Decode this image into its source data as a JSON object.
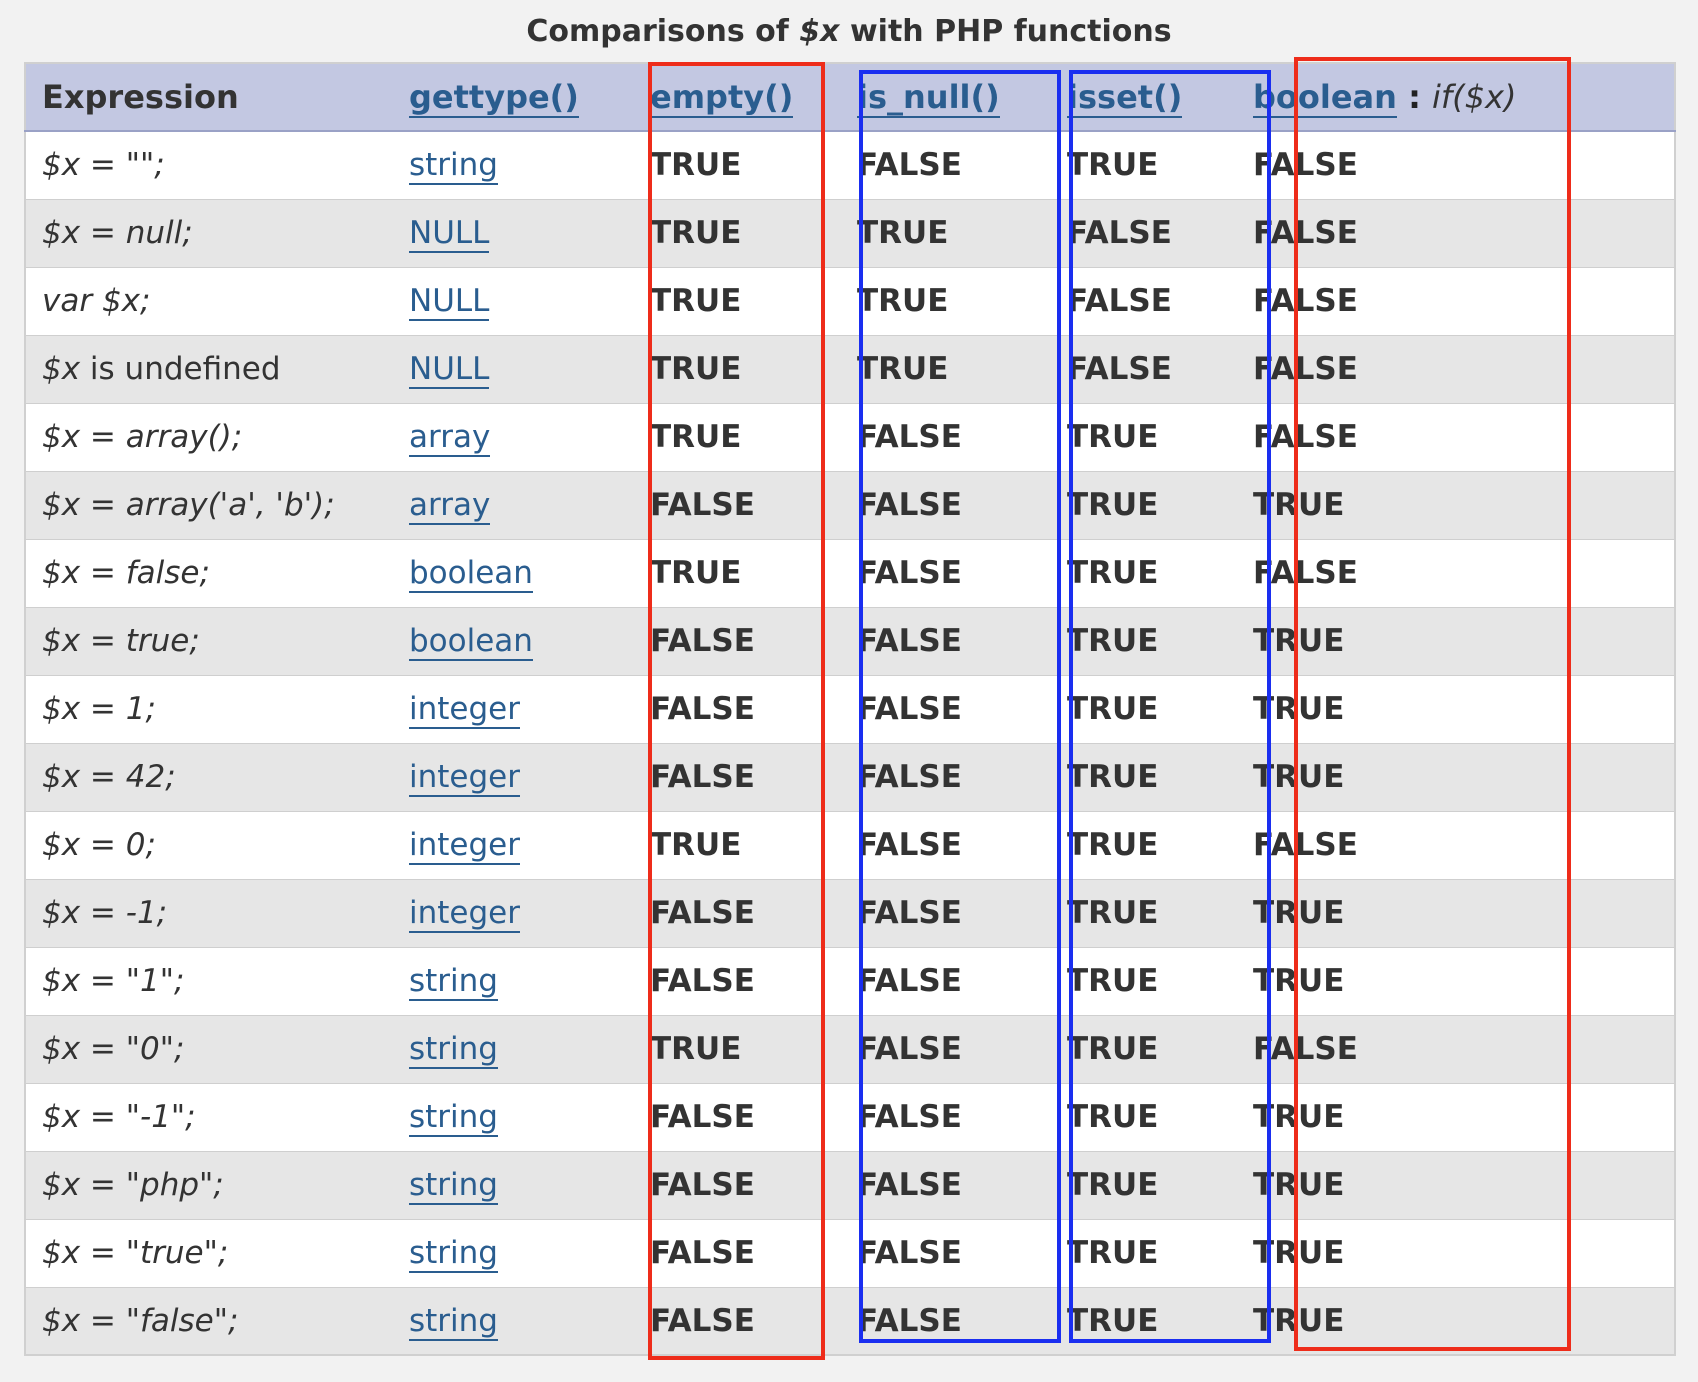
{
  "caption": {
    "prefix": "Comparisons of ",
    "var": "$x",
    "suffix": " with PHP functions"
  },
  "header": {
    "expression": "Expression",
    "gettype": "gettype()",
    "empty": "empty()",
    "is_null": "is_null()",
    "isset": "isset()",
    "boolean": "boolean",
    "boolean_sep": " : ",
    "boolean_note": "if($x)"
  },
  "rows": [
    {
      "expr": "$x = \"\";",
      "type": "string",
      "empty": "TRUE",
      "is_null": "FALSE",
      "isset": "TRUE",
      "bool": "FALSE"
    },
    {
      "expr": "$x = null;",
      "type": "NULL",
      "empty": "TRUE",
      "is_null": "TRUE",
      "isset": "FALSE",
      "bool": "FALSE"
    },
    {
      "expr": "var $x;",
      "type": "NULL",
      "empty": "TRUE",
      "is_null": "TRUE",
      "isset": "FALSE",
      "bool": "FALSE"
    },
    {
      "expr": "$x",
      "expr_plain": " is undefined",
      "type": "NULL",
      "empty": "TRUE",
      "is_null": "TRUE",
      "isset": "FALSE",
      "bool": "FALSE"
    },
    {
      "expr": "$x = array();",
      "type": "array",
      "empty": "TRUE",
      "is_null": "FALSE",
      "isset": "TRUE",
      "bool": "FALSE"
    },
    {
      "expr": "$x = array('a', 'b');",
      "type": "array",
      "empty": "FALSE",
      "is_null": "FALSE",
      "isset": "TRUE",
      "bool": "TRUE"
    },
    {
      "expr": "$x = false;",
      "type": "boolean",
      "empty": "TRUE",
      "is_null": "FALSE",
      "isset": "TRUE",
      "bool": "FALSE"
    },
    {
      "expr": "$x = true;",
      "type": "boolean",
      "empty": "FALSE",
      "is_null": "FALSE",
      "isset": "TRUE",
      "bool": "TRUE"
    },
    {
      "expr": "$x = 1;",
      "type": "integer",
      "empty": "FALSE",
      "is_null": "FALSE",
      "isset": "TRUE",
      "bool": "TRUE"
    },
    {
      "expr": "$x = 42;",
      "type": "integer",
      "empty": "FALSE",
      "is_null": "FALSE",
      "isset": "TRUE",
      "bool": "TRUE"
    },
    {
      "expr": "$x = 0;",
      "type": "integer",
      "empty": "TRUE",
      "is_null": "FALSE",
      "isset": "TRUE",
      "bool": "FALSE"
    },
    {
      "expr": "$x = -1;",
      "type": "integer",
      "empty": "FALSE",
      "is_null": "FALSE",
      "isset": "TRUE",
      "bool": "TRUE"
    },
    {
      "expr": "$x = \"1\";",
      "type": "string",
      "empty": "FALSE",
      "is_null": "FALSE",
      "isset": "TRUE",
      "bool": "TRUE"
    },
    {
      "expr": "$x = \"0\";",
      "type": "string",
      "empty": "TRUE",
      "is_null": "FALSE",
      "isset": "TRUE",
      "bool": "FALSE"
    },
    {
      "expr": "$x = \"-1\";",
      "type": "string",
      "empty": "FALSE",
      "is_null": "FALSE",
      "isset": "TRUE",
      "bool": "TRUE"
    },
    {
      "expr": "$x = \"php\";",
      "type": "string",
      "empty": "FALSE",
      "is_null": "FALSE",
      "isset": "TRUE",
      "bool": "TRUE"
    },
    {
      "expr": "$x = \"true\";",
      "type": "string",
      "empty": "FALSE",
      "is_null": "FALSE",
      "isset": "TRUE",
      "bool": "TRUE"
    },
    {
      "expr": "$x = \"false\";",
      "type": "string",
      "empty": "FALSE",
      "is_null": "FALSE",
      "isset": "TRUE",
      "bool": "TRUE"
    }
  ],
  "highlight_colors": {
    "red": "#ee2c1a",
    "blue": "#1a2ef0"
  }
}
